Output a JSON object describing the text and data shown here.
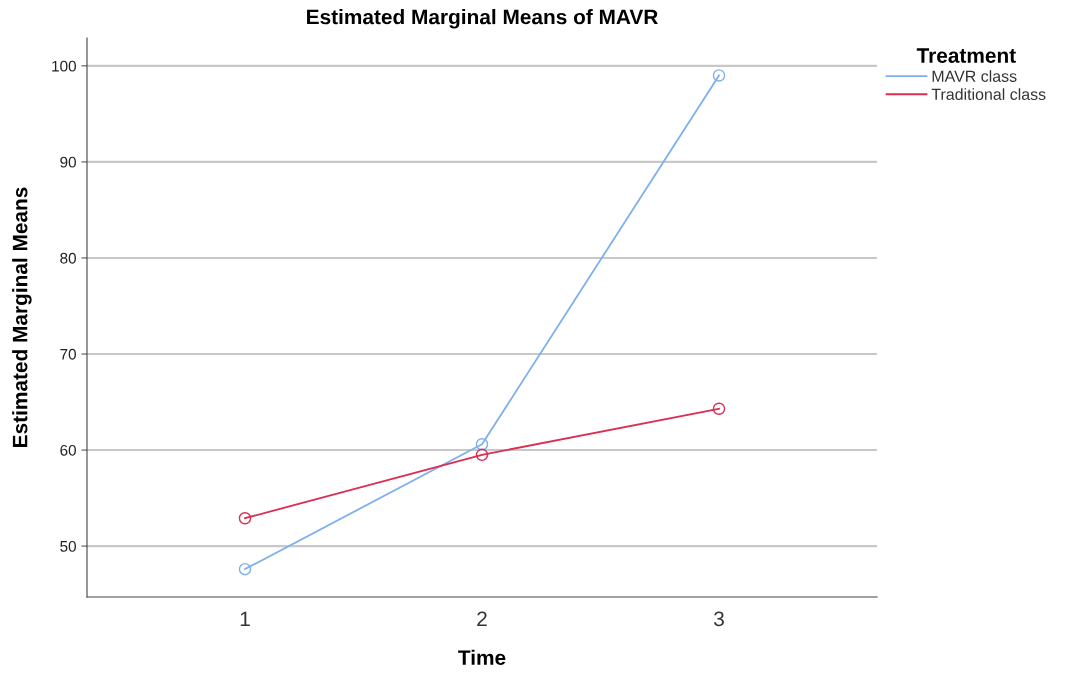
{
  "chart_data": {
    "type": "line",
    "title": "Estimated Marginal Means of MAVR",
    "xlabel": "Time",
    "ylabel": "Estimated Marginal Means",
    "legend_title": "Treatment",
    "categories": [
      "1",
      "2",
      "3"
    ],
    "series": [
      {
        "name": "MAVR class",
        "color": "#7eb0ee",
        "values": [
          47.6,
          60.6,
          99.0
        ]
      },
      {
        "name": "Traditional class",
        "color": "#dc2d52",
        "values": [
          52.9,
          59.5,
          64.3
        ]
      }
    ],
    "ylim": [
      44.7,
      102.9
    ],
    "yticks": [
      50,
      60,
      70,
      80,
      90,
      100
    ],
    "grid": "y",
    "legend": "top right",
    "marker": "circle",
    "line_style": "solid"
  }
}
